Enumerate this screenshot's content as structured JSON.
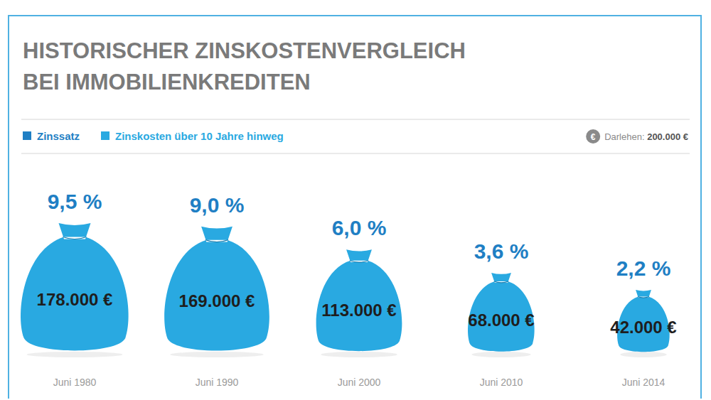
{
  "chart_data": {
    "type": "bubble",
    "title": "HISTORISCHER ZINSKOSTENVERGLEICH BEI IMMOBILIENKREDITEN",
    "categories": [
      "Juni 1980",
      "Juni 1990",
      "Juni 2000",
      "Juni 2010",
      "Juni 2014"
    ],
    "series": [
      {
        "name": "Zinssatz",
        "type": "text",
        "color": "#1f7fc4",
        "values": [
          9.5,
          9.0,
          6.0,
          3.6,
          2.2
        ],
        "value_labels": [
          "9,5 %",
          "9,0 %",
          "6,0 %",
          "3,6 %",
          "2,2 %"
        ]
      },
      {
        "name": "Zinskosten über 10 Jahre hinweg",
        "type": "bubble",
        "color": "#29a9e1",
        "values": [
          178000,
          169000,
          113000,
          68000,
          42000
        ],
        "value_labels": [
          "178.000 €",
          "169.000 €",
          "113.000 €",
          "68.000 €",
          "42.000 €"
        ]
      }
    ],
    "legend": "top-left",
    "data_labels": true,
    "tick_labels": "x",
    "annotations": [
      {
        "icon": "€",
        "label": "Darlehen:",
        "value": "200.000 €"
      }
    ]
  }
}
